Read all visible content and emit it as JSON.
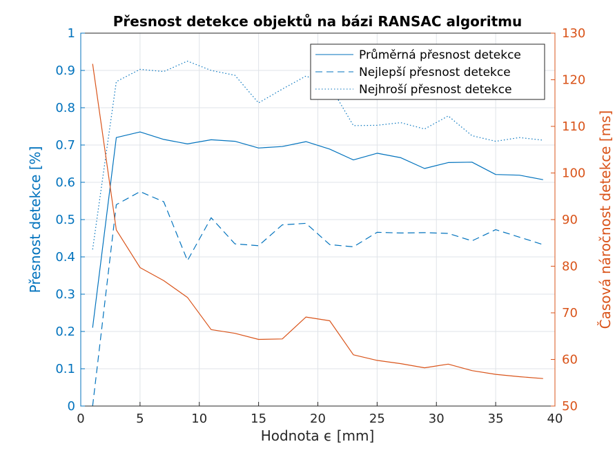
{
  "chart_data": {
    "type": "line",
    "title": "Přesnost detekce objektů na bázi RANSAC algoritmu",
    "xlabel": "Hodnota ϵ [mm]",
    "ylabel_left": "Přesnost detekce [%]",
    "ylabel_right": "Časová náročnost detekce [ms]",
    "xlim": [
      0,
      40
    ],
    "ylim_left": [
      0,
      1
    ],
    "ylim_right": [
      50,
      130
    ],
    "x_ticks": [
      0,
      5,
      10,
      15,
      20,
      25,
      30,
      35,
      40
    ],
    "y_left_ticks": [
      0,
      0.1,
      0.2,
      0.3,
      0.4,
      0.5,
      0.6,
      0.7,
      0.8,
      0.9,
      1
    ],
    "y_right_ticks": [
      50,
      60,
      70,
      80,
      90,
      100,
      110,
      120,
      130
    ],
    "grid": true,
    "legend_position": "top-right",
    "colors": {
      "left_axis": "#0072BD",
      "right_axis": "#D95319"
    },
    "x": [
      1,
      3,
      5,
      7,
      9,
      11,
      13,
      15,
      17,
      19,
      21,
      23,
      25,
      27,
      29,
      31,
      33,
      35,
      37,
      39
    ],
    "series": [
      {
        "name": "Průměrná přesnost detekce",
        "axis": "left",
        "style": "solid",
        "color": "#0072BD",
        "values": [
          0.21,
          0.72,
          0.735,
          0.715,
          0.703,
          0.714,
          0.71,
          0.692,
          0.696,
          0.709,
          0.689,
          0.66,
          0.678,
          0.666,
          0.637,
          0.653,
          0.654,
          0.621,
          0.619,
          0.607
        ]
      },
      {
        "name": "Nejlepší přesnost detekce",
        "axis": "left",
        "style": "dashed",
        "color": "#0072BD",
        "values": [
          0.0,
          0.54,
          0.575,
          0.548,
          0.39,
          0.505,
          0.435,
          0.43,
          0.486,
          0.49,
          0.433,
          0.427,
          0.466,
          0.464,
          0.465,
          0.463,
          0.443,
          0.473,
          0.453,
          0.433
        ]
      },
      {
        "name": "Nejhroší přesnost detekce",
        "axis": "left",
        "style": "dotted",
        "color": "#0072BD",
        "values": [
          0.42,
          0.87,
          0.903,
          0.897,
          0.925,
          0.9,
          0.887,
          0.813,
          0.85,
          0.885,
          0.86,
          0.752,
          0.753,
          0.76,
          0.743,
          0.778,
          0.725,
          0.71,
          0.72,
          0.713
        ]
      },
      {
        "axis": "right",
        "style": "solid",
        "color": "#D95319",
        "values": [
          123.4,
          87.8,
          79.7,
          76.9,
          73.3,
          66.4,
          65.6,
          64.3,
          64.4,
          69.1,
          68.3,
          61.0,
          59.8,
          59.1,
          58.2,
          59.0,
          57.6,
          56.8,
          56.3,
          55.9
        ]
      }
    ]
  }
}
